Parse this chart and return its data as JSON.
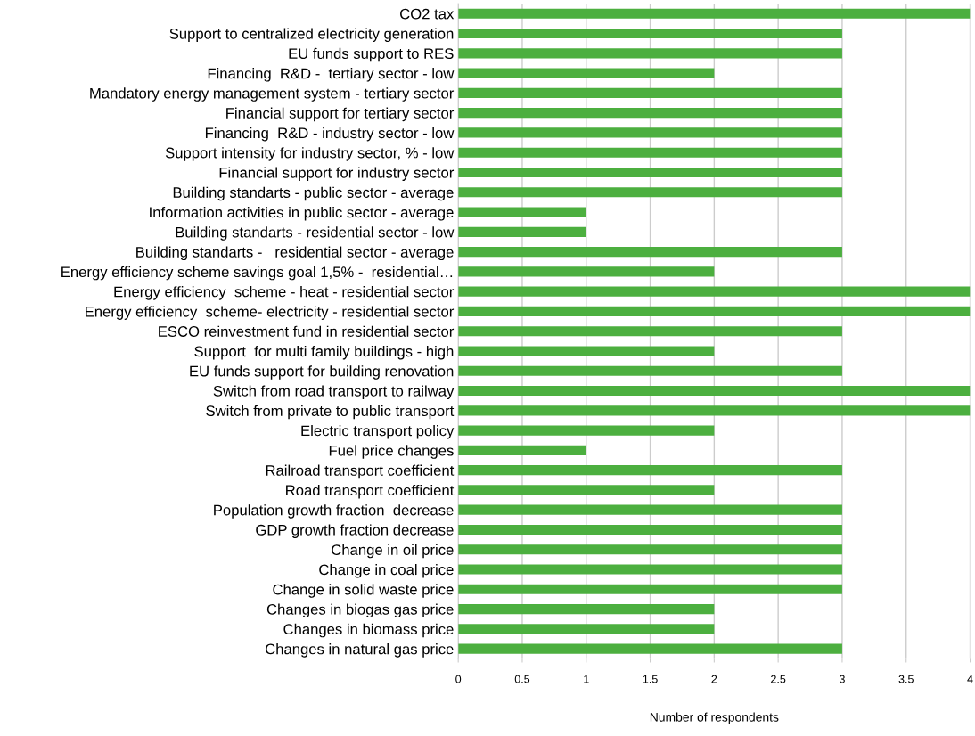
{
  "chart_data": {
    "type": "bar",
    "orientation": "horizontal",
    "xlabel": "Number of respondents",
    "categories": [
      "CO2 tax",
      "Support to centralized electricity generation",
      "EU funds support to RES",
      "Financing  R&D -  tertiary sector - low",
      "Mandatory energy management system - tertiary sector",
      "Financial support for tertiary sector",
      "Financing  R&D - industry sector - low",
      "Support intensity for industry sector, % - low",
      "Financial support for industry sector",
      "Building standarts - public sector - average",
      "Information activities in public sector - average",
      "Building standarts - residential sector - low",
      "Building standarts -   residential sector - average",
      "Energy efficiency scheme savings goal 1,5% -  residential…",
      "Energy efficiency  scheme - heat - residential sector",
      "Energy efficiency  scheme- electricity - residential sector",
      "ESCO reinvestment fund in residential sector",
      "Support  for multi family buildings - high",
      "EU funds support for building renovation",
      "Switch from road transport to railway",
      "Switch from private to public transport",
      "Electric transport policy",
      "Fuel price changes",
      "Railroad transport coefficient",
      "Road transport coefficient",
      "Population growth fraction  decrease",
      "GDP growth fraction decrease",
      "Change in oil price",
      "Change in coal price",
      "Change in solid waste price",
      "Changes in biogas gas price",
      "Changes in biomass price",
      "Changes in natural gas price"
    ],
    "values": [
      4,
      3,
      3,
      2,
      3,
      3,
      3,
      3,
      3,
      3,
      1,
      1,
      3,
      2,
      4,
      4,
      3,
      2,
      3,
      4,
      4,
      2,
      1,
      3,
      2,
      3,
      3,
      3,
      3,
      3,
      2,
      2,
      3
    ],
    "color": "#4caf3f",
    "xlim": [
      0,
      4
    ],
    "xticks": [
      0,
      0.5,
      1,
      1.5,
      2,
      2.5,
      3,
      3.5,
      4
    ],
    "grid": "x"
  }
}
